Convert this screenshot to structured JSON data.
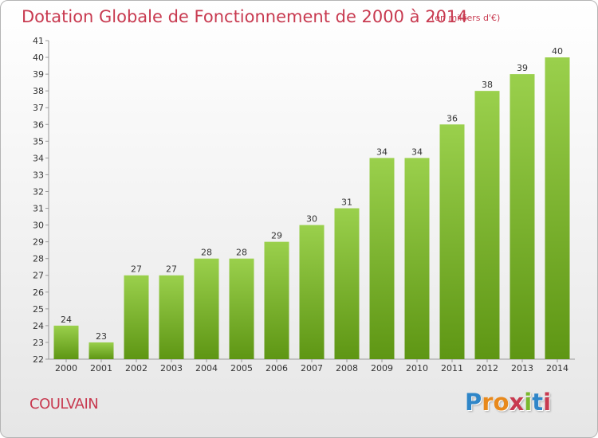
{
  "title": "Dotation Globale de Fonctionnement de 2000 à 2014",
  "subtitle": "(en milliers d'€)",
  "commune": "COULVAIN",
  "logo": {
    "text": "Proxiti",
    "letter_colors": [
      "#2f86c8",
      "#e8891c",
      "#e8891c",
      "#c83a50",
      "#7ab82e",
      "#2f86c8",
      "#c83a50"
    ]
  },
  "colors": {
    "title": "#c83a50",
    "bar_top": "#9ad04c",
    "bar_bottom": "#5e9614",
    "axis": "#999999",
    "label": "#333333"
  },
  "chart_data": {
    "type": "bar",
    "categories": [
      "2000",
      "2001",
      "2002",
      "2003",
      "2004",
      "2005",
      "2006",
      "2007",
      "2008",
      "2009",
      "2010",
      "2011",
      "2012",
      "2013",
      "2014"
    ],
    "values": [
      24,
      23,
      27,
      27,
      28,
      28,
      29,
      30,
      31,
      34,
      34,
      36,
      38,
      39,
      40
    ],
    "ylim": [
      22,
      41
    ],
    "yticks": [
      22,
      23,
      24,
      25,
      26,
      27,
      28,
      29,
      30,
      31,
      32,
      33,
      34,
      35,
      36,
      37,
      38,
      39,
      40,
      41
    ],
    "data_labels": true,
    "grid": false
  }
}
